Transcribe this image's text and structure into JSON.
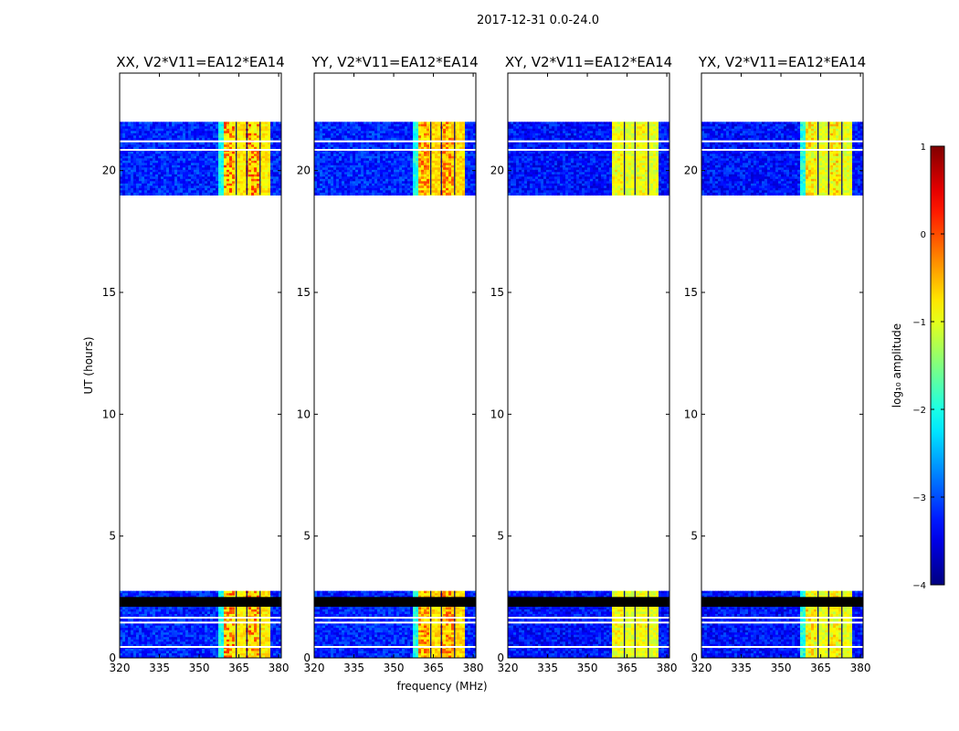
{
  "figure": {
    "suptitle": "2017-12-31 0.0-24.0",
    "xlabel": "frequency (MHz)",
    "ylabel": "UT (hours)"
  },
  "colorbar": {
    "label": "log₁₀ amplitude",
    "range": [
      -4,
      1
    ],
    "ticks": [
      1,
      0,
      -1,
      -2,
      -3,
      -4
    ],
    "tick_labels": [
      "1",
      "0",
      "−1",
      "−2",
      "−3",
      "−4"
    ],
    "colormap": "jet"
  },
  "chart_data": [
    {
      "type": "heatmap",
      "title": "XX, V2*V11=EA12*EA14",
      "polarization": "XX",
      "xlim": [
        320,
        381
      ],
      "ylim": [
        0,
        24
      ],
      "x_ticks": [
        320,
        335,
        350,
        365,
        380
      ],
      "y_ticks": [
        0,
        5,
        10,
        15,
        20
      ],
      "data_ranges_hours": [
        [
          0,
          2.75
        ],
        [
          19.0,
          22.0
        ]
      ],
      "flagged_band_hours": [
        2.1,
        2.5
      ],
      "background_log_amplitude": -3.2,
      "bright_band_mhz": [
        359,
        377
      ],
      "bright_band_log_amplitude": -0.8,
      "peak_log_amplitude": 0.2
    },
    {
      "type": "heatmap",
      "title": "YY, V2*V11=EA12*EA14",
      "polarization": "YY",
      "xlim": [
        320,
        381
      ],
      "ylim": [
        0,
        24
      ],
      "x_ticks": [
        320,
        335,
        350,
        365,
        380
      ],
      "y_ticks": [
        0,
        5,
        10,
        15,
        20
      ],
      "data_ranges_hours": [
        [
          0,
          2.75
        ],
        [
          19.0,
          22.0
        ]
      ],
      "flagged_band_hours": [
        2.1,
        2.5
      ],
      "background_log_amplitude": -3.2,
      "bright_band_mhz": [
        359,
        377
      ],
      "bright_band_log_amplitude": -0.7,
      "peak_log_amplitude": 0.1
    },
    {
      "type": "heatmap",
      "title": "XY, V2*V11=EA12*EA14",
      "polarization": "XY",
      "xlim": [
        320,
        381
      ],
      "ylim": [
        0,
        24
      ],
      "x_ticks": [
        320,
        335,
        350,
        365,
        380
      ],
      "y_ticks": [
        0,
        5,
        10,
        15,
        20
      ],
      "data_ranges_hours": [
        [
          0,
          2.75
        ],
        [
          19.0,
          22.0
        ]
      ],
      "flagged_band_hours": [
        2.1,
        2.5
      ],
      "background_log_amplitude": -3.3,
      "bright_band_mhz": [
        359,
        377
      ],
      "bright_band_log_amplitude": -1.0,
      "peak_log_amplitude": -0.6
    },
    {
      "type": "heatmap",
      "title": "YX, V2*V11=EA12*EA14",
      "polarization": "YX",
      "xlim": [
        320,
        381
      ],
      "ylim": [
        0,
        24
      ],
      "x_ticks": [
        320,
        335,
        350,
        365,
        380
      ],
      "y_ticks": [
        0,
        5,
        10,
        15,
        20
      ],
      "data_ranges_hours": [
        [
          0,
          2.75
        ],
        [
          19.0,
          22.0
        ]
      ],
      "flagged_band_hours": [
        2.1,
        2.5
      ],
      "background_log_amplitude": -3.3,
      "bright_band_mhz": [
        359,
        377
      ],
      "bright_band_log_amplitude": -1.0,
      "peak_log_amplitude": -0.4
    }
  ]
}
